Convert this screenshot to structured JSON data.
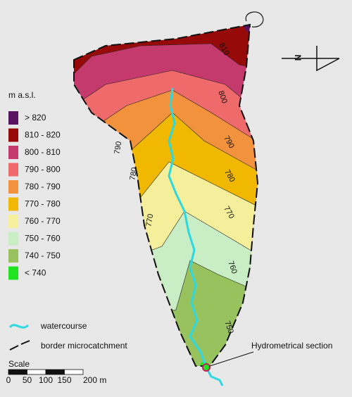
{
  "legend": {
    "title": "m a.s.l.",
    "items": [
      {
        "label": "> 820",
        "color": "#5a1262"
      },
      {
        "label": "810 - 820",
        "color": "#960a0a"
      },
      {
        "label": "800 - 810",
        "color": "#c43a6c"
      },
      {
        "label": "790 - 800",
        "color": "#ef6a6a"
      },
      {
        "label": "780 - 790",
        "color": "#f2923c"
      },
      {
        "label": "770 - 780",
        "color": "#f0b800"
      },
      {
        "label": "760 - 770",
        "color": "#f5ef9c"
      },
      {
        "label": "750 - 760",
        "color": "#c9edc4"
      },
      {
        "label": "740 - 750",
        "color": "#98c25e"
      },
      {
        "label": "< 740",
        "color": "#1fe41f"
      }
    ]
  },
  "contour_labels": [
    "810",
    "800",
    "790",
    "790",
    "780",
    "780",
    "770",
    "770",
    "760",
    "750"
  ],
  "lines_legend": [
    {
      "label": "watercourse"
    },
    {
      "label": "border microcatchment"
    }
  ],
  "scale": {
    "title": "Scale",
    "ticks": [
      "0",
      "50",
      "100",
      "150",
      "200 m"
    ]
  },
  "north": "N",
  "annotation": "Hydrometrical section"
}
